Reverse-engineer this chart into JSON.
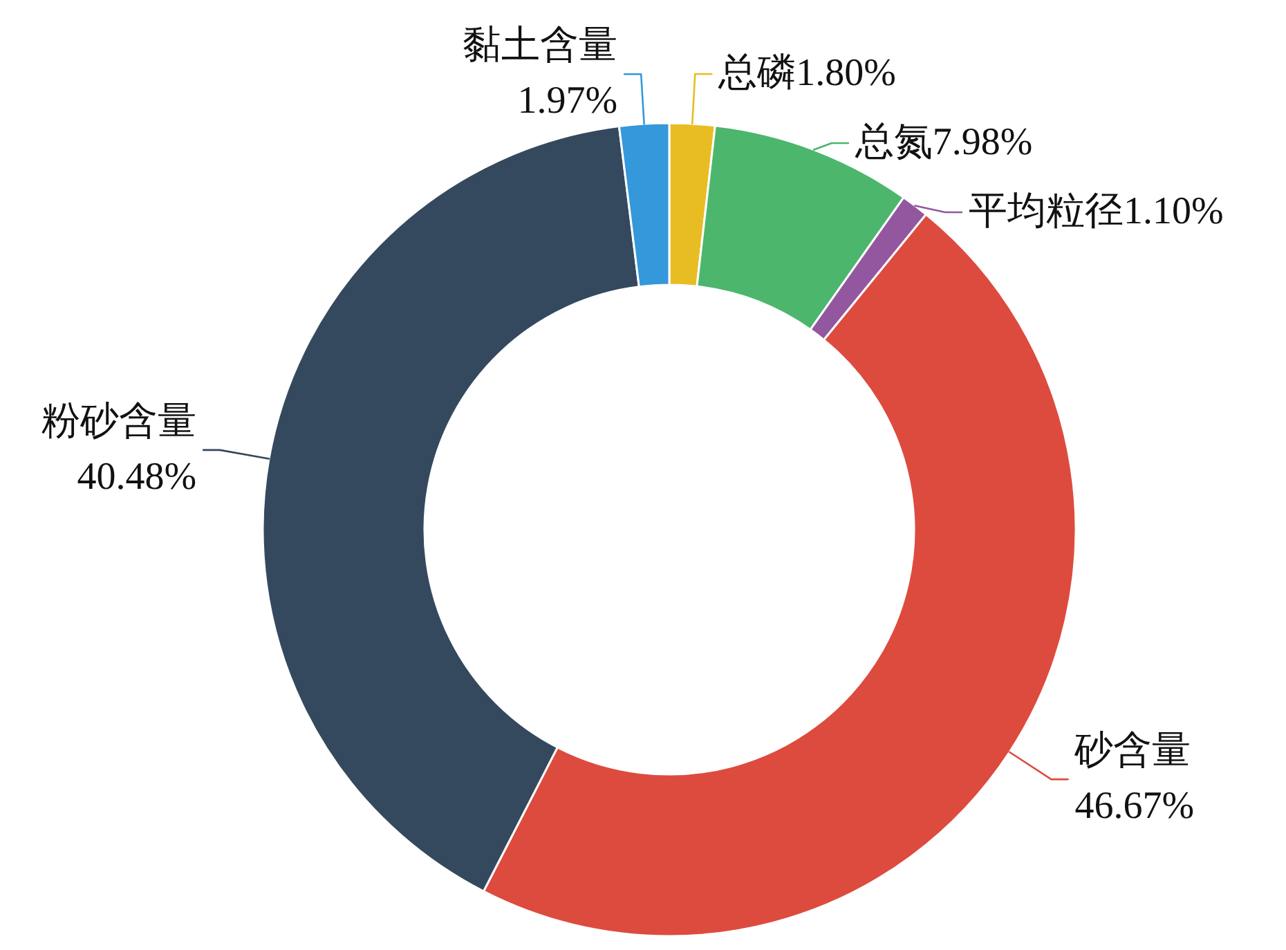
{
  "chart_data": {
    "type": "donut",
    "categories": [
      "总磷",
      "总氮",
      "平均粒径",
      "砂含量",
      "粉砂含量",
      "黏土含量"
    ],
    "values": [
      1.8,
      7.98,
      1.1,
      46.67,
      40.48,
      1.97
    ],
    "value_labels": [
      "1.80%",
      "7.98%",
      "1.10%",
      "46.67%",
      "40.48%",
      "1.97%"
    ],
    "colors": [
      "#e7bd23",
      "#4cb66d",
      "#93579f",
      "#dd4b3e",
      "#34495e",
      "#3498db"
    ]
  }
}
